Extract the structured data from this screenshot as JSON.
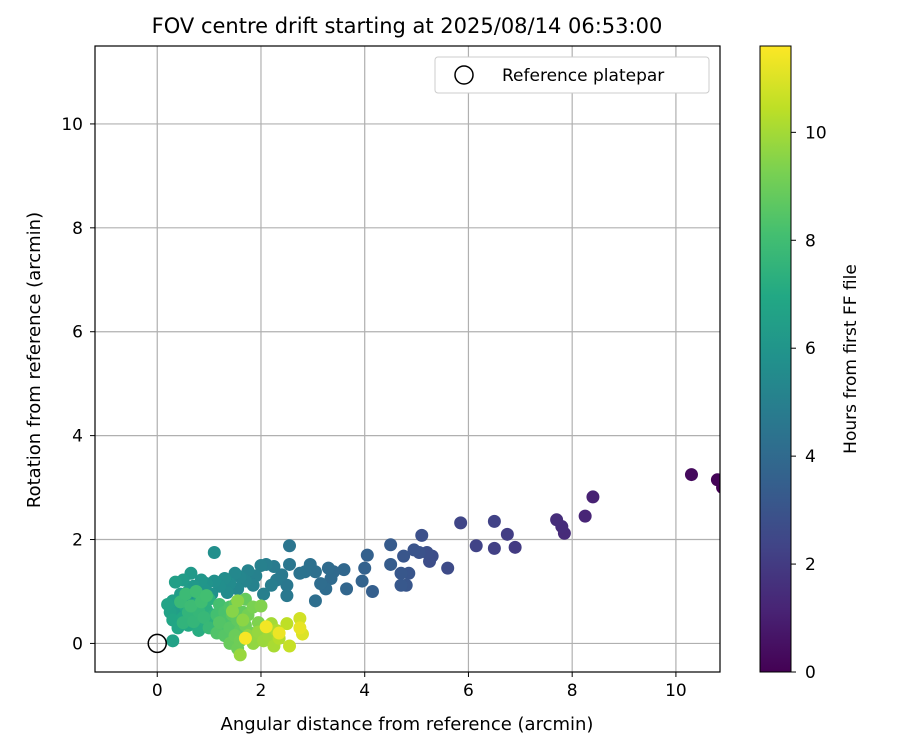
{
  "chart_data": {
    "type": "scatter",
    "title": "FOV centre drift starting at 2025/08/14 06:53:00",
    "xlabel": "Angular distance from reference (arcmin)",
    "ylabel": "Rotation from reference (arcmin)",
    "xlim": [
      -1.2,
      10.85
    ],
    "ylim": [
      -0.55,
      11.5
    ],
    "xticks": [
      0,
      2,
      4,
      6,
      8,
      10
    ],
    "yticks": [
      0,
      2,
      4,
      6,
      8,
      10
    ],
    "grid": true,
    "legend": {
      "placement": "top-right",
      "entries": [
        {
          "label": "Reference platepar",
          "marker": "open-circle"
        }
      ]
    },
    "reference_point": {
      "x": 0,
      "y": 0
    },
    "colorbar": {
      "label": "Hours from first FF file",
      "range": [
        0,
        11.6
      ],
      "ticks": [
        0,
        2,
        4,
        6,
        8,
        10
      ],
      "colormap": "viridis"
    },
    "points": [
      [
        10.9,
        3.0,
        0.05
      ],
      [
        10.8,
        3.15,
        0.1
      ],
      [
        10.3,
        3.25,
        0.3
      ],
      [
        8.4,
        2.82,
        1.1
      ],
      [
        8.25,
        2.45,
        1.2
      ],
      [
        7.85,
        2.12,
        1.4
      ],
      [
        7.8,
        2.25,
        1.45
      ],
      [
        7.7,
        2.38,
        1.5
      ],
      [
        6.9,
        1.85,
        2.0
      ],
      [
        6.75,
        2.1,
        2.1
      ],
      [
        6.5,
        1.83,
        2.2
      ],
      [
        6.5,
        2.35,
        2.25
      ],
      [
        6.15,
        1.88,
        2.3
      ],
      [
        5.85,
        2.32,
        2.4
      ],
      [
        5.6,
        1.45,
        2.6
      ],
      [
        5.3,
        1.68,
        2.7
      ],
      [
        5.25,
        1.58,
        2.75
      ],
      [
        5.2,
        1.75,
        2.8
      ],
      [
        5.1,
        2.08,
        2.85
      ],
      [
        5.05,
        1.75,
        2.9
      ],
      [
        4.95,
        1.8,
        3.0
      ],
      [
        4.85,
        1.35,
        3.05
      ],
      [
        4.8,
        1.12,
        3.1
      ],
      [
        4.75,
        1.68,
        3.1
      ],
      [
        4.7,
        1.35,
        3.15
      ],
      [
        4.7,
        1.12,
        3.2
      ],
      [
        4.5,
        1.9,
        3.3
      ],
      [
        4.5,
        1.52,
        3.35
      ],
      [
        4.15,
        1.0,
        3.5
      ],
      [
        4.05,
        1.7,
        3.55
      ],
      [
        4.0,
        1.45,
        3.6
      ],
      [
        3.95,
        1.2,
        3.65
      ],
      [
        3.65,
        1.05,
        3.8
      ],
      [
        3.6,
        1.42,
        3.85
      ],
      [
        3.4,
        1.38,
        3.95
      ],
      [
        3.35,
        1.25,
        4.0
      ],
      [
        3.3,
        1.45,
        4.05
      ],
      [
        3.25,
        1.05,
        4.1
      ],
      [
        3.15,
        1.15,
        4.15
      ],
      [
        3.05,
        0.82,
        4.2
      ],
      [
        3.05,
        1.38,
        4.25
      ],
      [
        2.95,
        1.52,
        4.3
      ],
      [
        2.85,
        1.38,
        4.35
      ],
      [
        2.75,
        1.35,
        4.4
      ],
      [
        2.55,
        1.88,
        4.5
      ],
      [
        2.55,
        1.52,
        4.55
      ],
      [
        2.5,
        1.12,
        4.6
      ],
      [
        2.5,
        0.92,
        4.62
      ],
      [
        2.4,
        1.32,
        4.7
      ],
      [
        2.3,
        1.22,
        4.75
      ],
      [
        2.25,
        1.48,
        4.8
      ],
      [
        2.2,
        1.12,
        4.85
      ],
      [
        2.1,
        1.52,
        4.9
      ],
      [
        2.05,
        0.95,
        4.95
      ],
      [
        2.0,
        1.5,
        5.0
      ],
      [
        1.9,
        1.3,
        5.05
      ],
      [
        1.85,
        1.12,
        5.1
      ],
      [
        1.75,
        1.4,
        5.15
      ],
      [
        1.7,
        1.2,
        5.2
      ],
      [
        1.6,
        1.28,
        5.3
      ],
      [
        1.55,
        1.05,
        5.35
      ],
      [
        1.5,
        1.35,
        5.4
      ],
      [
        1.4,
        1.15,
        5.5
      ],
      [
        1.35,
        0.98,
        5.55
      ],
      [
        1.3,
        1.25,
        5.6
      ],
      [
        1.2,
        1.1,
        5.65
      ],
      [
        1.1,
        1.75,
        5.7
      ],
      [
        1.1,
        1.2,
        5.75
      ],
      [
        1.05,
        0.95,
        5.8
      ],
      [
        0.95,
        1.15,
        5.9
      ],
      [
        0.9,
        1.05,
        6.0
      ],
      [
        0.85,
        1.22,
        6.05
      ],
      [
        0.75,
        0.9,
        6.1
      ],
      [
        0.7,
        1.1,
        6.15
      ],
      [
        0.65,
        1.35,
        6.2
      ],
      [
        0.6,
        1.0,
        6.25
      ],
      [
        0.55,
        0.85,
        6.3
      ],
      [
        0.5,
        1.22,
        6.35
      ],
      [
        0.45,
        0.95,
        6.4
      ],
      [
        0.4,
        0.6,
        6.45
      ],
      [
        0.35,
        1.18,
        6.5
      ],
      [
        0.3,
        0.82,
        6.55
      ],
      [
        0.3,
        0.05,
        6.6
      ],
      [
        0.25,
        0.6,
        6.65
      ],
      [
        0.2,
        0.75,
        6.7
      ],
      [
        0.3,
        0.45,
        6.8
      ],
      [
        0.4,
        0.3,
        6.85
      ],
      [
        0.5,
        0.5,
        6.9
      ],
      [
        0.55,
        0.7,
        6.95
      ],
      [
        0.6,
        0.35,
        7.0
      ],
      [
        0.7,
        0.55,
        7.05
      ],
      [
        0.75,
        0.75,
        7.1
      ],
      [
        0.8,
        0.25,
        7.15
      ],
      [
        0.9,
        0.45,
        7.2
      ],
      [
        0.95,
        0.65,
        7.3
      ],
      [
        1.0,
        0.85,
        7.35
      ],
      [
        1.05,
        0.35,
        7.4
      ],
      [
        1.1,
        0.55,
        7.45
      ],
      [
        0.5,
        0.4,
        7.5
      ],
      [
        0.6,
        0.6,
        7.55
      ],
      [
        0.7,
        0.42,
        7.6
      ],
      [
        0.8,
        0.62,
        7.65
      ],
      [
        0.9,
        0.5,
        7.7
      ],
      [
        1.0,
        0.3,
        7.75
      ],
      [
        0.45,
        0.8,
        7.8
      ],
      [
        0.55,
        0.95,
        7.85
      ],
      [
        0.65,
        0.72,
        7.9
      ],
      [
        0.75,
        1.0,
        7.95
      ],
      [
        0.85,
        0.8,
        8.0
      ],
      [
        0.95,
        0.92,
        8.05
      ],
      [
        1.15,
        0.55,
        8.1
      ],
      [
        1.2,
        0.75,
        8.15
      ],
      [
        1.25,
        0.35,
        8.2
      ],
      [
        1.3,
        0.6,
        8.25
      ],
      [
        1.35,
        0.45,
        8.3
      ],
      [
        1.4,
        0.7,
        8.35
      ],
      [
        1.15,
        0.2,
        8.4
      ],
      [
        1.2,
        0.4,
        8.45
      ],
      [
        1.3,
        0.15,
        8.5
      ],
      [
        1.4,
        0.3,
        8.55
      ],
      [
        1.45,
        0.55,
        8.6
      ],
      [
        1.5,
        0.75,
        8.65
      ],
      [
        1.55,
        0.45,
        8.7
      ],
      [
        1.6,
        0.25,
        8.75
      ],
      [
        1.65,
        0.6,
        8.8
      ],
      [
        1.7,
        0.85,
        8.85
      ],
      [
        1.4,
        0.0,
        8.9
      ],
      [
        1.5,
        0.15,
        8.95
      ],
      [
        1.55,
        -0.1,
        9.0
      ],
      [
        1.6,
        0.05,
        9.05
      ],
      [
        1.7,
        0.35,
        9.1
      ],
      [
        1.75,
        0.55,
        9.15
      ],
      [
        1.8,
        0.2,
        9.2
      ],
      [
        1.85,
        0.7,
        9.25
      ],
      [
        1.9,
        0.05,
        9.3
      ],
      [
        1.95,
        0.4,
        9.35
      ],
      [
        2.0,
        0.72,
        9.4
      ],
      [
        1.45,
        0.62,
        9.5
      ],
      [
        1.55,
        0.82,
        9.55
      ],
      [
        1.65,
        0.45,
        9.6
      ],
      [
        1.75,
        0.15,
        9.65
      ],
      [
        1.85,
        0.0,
        9.7
      ],
      [
        1.95,
        0.22,
        9.75
      ],
      [
        1.6,
        -0.22,
        9.8
      ],
      [
        2.05,
        0.05,
        9.85
      ],
      [
        2.15,
        0.15,
        9.9
      ],
      [
        2.2,
        0.38,
        10.0
      ],
      [
        2.25,
        -0.05,
        10.1
      ],
      [
        2.3,
        0.25,
        10.2
      ],
      [
        2.35,
        0.1,
        10.3
      ],
      [
        2.5,
        0.38,
        10.45
      ],
      [
        2.55,
        -0.05,
        10.6
      ],
      [
        2.75,
        0.48,
        10.8
      ],
      [
        2.8,
        0.18,
        11.0
      ],
      [
        2.75,
        0.3,
        11.2
      ],
      [
        2.35,
        0.2,
        11.3
      ],
      [
        2.1,
        0.32,
        11.4
      ],
      [
        1.7,
        0.1,
        11.5
      ]
    ]
  }
}
